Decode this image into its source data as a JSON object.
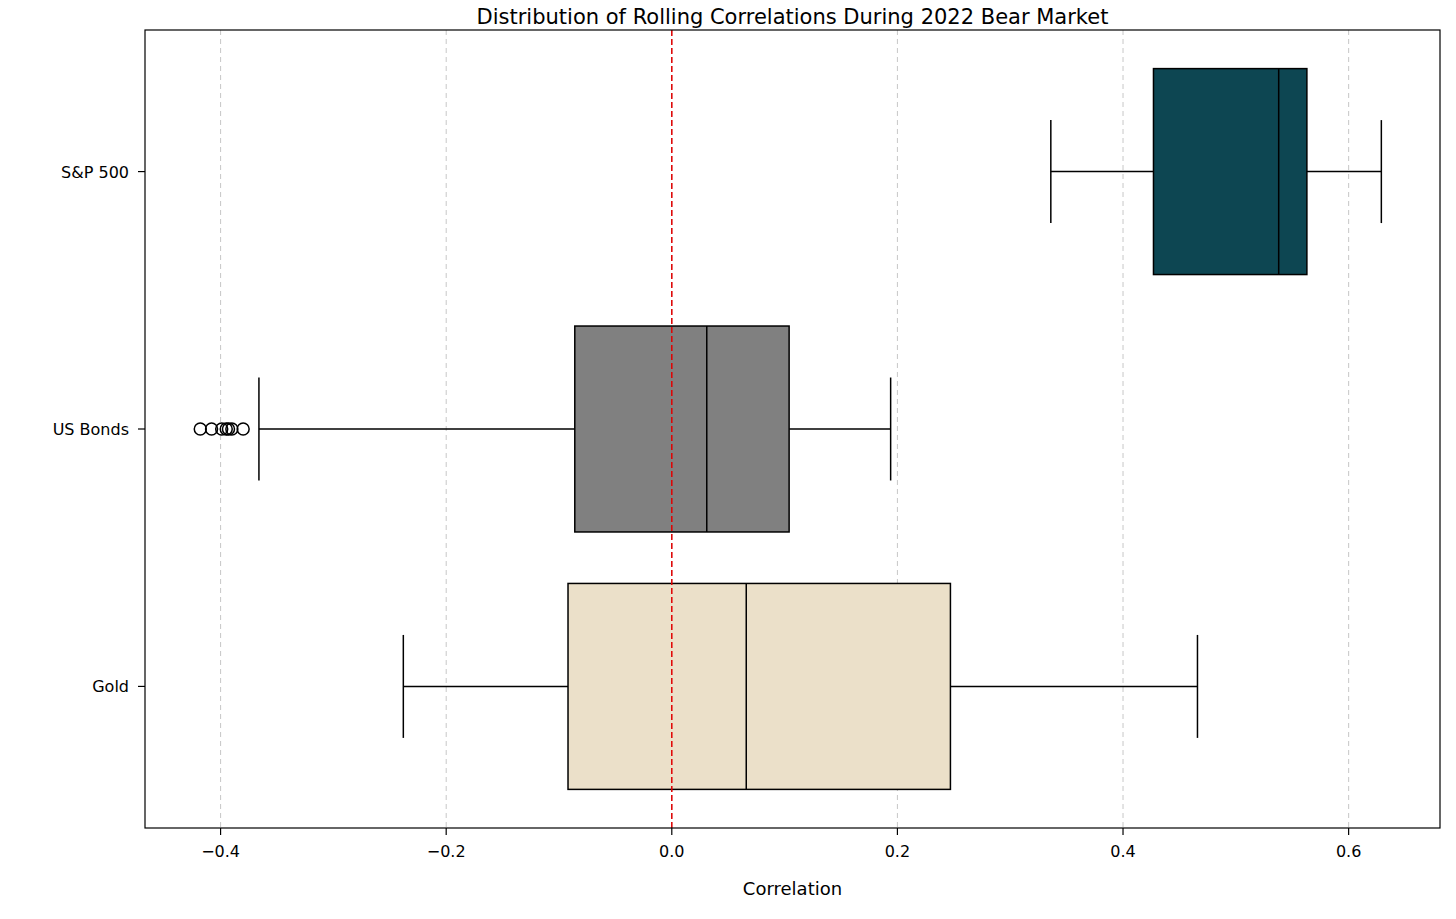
{
  "chart_data": {
    "type": "box",
    "title": "Distribution of Rolling Correlations During 2022 Bear Market",
    "x_label": "Correlation",
    "orientation": "horizontal",
    "categories": [
      "S&P 500",
      "US Bonds",
      "Gold"
    ],
    "colors": [
      "#0d4652",
      "#808080",
      "#ebe0c9"
    ],
    "boxes": [
      {
        "min": 0.336,
        "q1": 0.427,
        "median": 0.538,
        "q3": 0.563,
        "max": 0.629,
        "outliers": []
      },
      {
        "min": -0.366,
        "q1": -0.086,
        "median": 0.031,
        "q3": 0.104,
        "max": 0.194,
        "outliers": [
          -0.418,
          -0.408,
          -0.399,
          -0.395,
          -0.393,
          -0.39,
          -0.38
        ]
      },
      {
        "min": -0.238,
        "q1": -0.092,
        "median": 0.066,
        "q3": 0.247,
        "max": 0.466,
        "outliers": []
      }
    ],
    "reference_line": 0,
    "xlim": [
      -0.467,
      0.681
    ],
    "xticks": [
      {
        "value": -0.4,
        "label": "−0.4"
      },
      {
        "value": -0.2,
        "label": "−0.2"
      },
      {
        "value": 0,
        "label": "0.0"
      },
      {
        "value": 0.2,
        "label": "0.2"
      },
      {
        "value": 0.4,
        "label": "0.4"
      },
      {
        "value": 0.6,
        "label": "0.6"
      }
    ],
    "grid": true
  }
}
